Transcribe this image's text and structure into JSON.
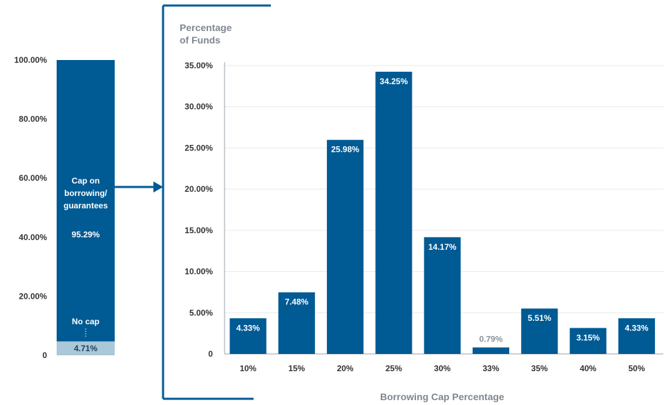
{
  "colors": {
    "bar": "#005a93",
    "no_cap_bar": "#a9c8d8",
    "bracket": "#005a93",
    "grid": "#e6e9ec",
    "axis_title": "#7f8791",
    "tick": "#333333"
  },
  "chart_data": [
    {
      "type": "bar",
      "stacked": true,
      "ylim": [
        0,
        100
      ],
      "y_ticks": [
        "0",
        "20.00%",
        "40.00%",
        "60.00%",
        "80.00%",
        "100.00%"
      ],
      "y_tick_values": [
        0,
        20,
        40,
        60,
        80,
        100
      ],
      "series": [
        {
          "name": "No cap",
          "value": 4.71,
          "label": "4.71%"
        },
        {
          "name": "Cap on borrowing/ guarantees",
          "label_lines": [
            "Cap on",
            "borrowing/",
            "guarantees"
          ],
          "value": 95.29,
          "label": "95.29%"
        }
      ]
    },
    {
      "type": "bar",
      "title": "",
      "ylabel_lines": [
        "Percentage",
        "of Funds"
      ],
      "xlabel": "Borrowing Cap Percentage",
      "ylim": [
        0,
        35
      ],
      "y_ticks": [
        "0",
        "5.00%",
        "10.00%",
        "15.00%",
        "20.00%",
        "25.00%",
        "30.00%",
        "35.00%"
      ],
      "y_tick_values": [
        0,
        5,
        10,
        15,
        20,
        25,
        30,
        35
      ],
      "grid": true,
      "categories": [
        "10%",
        "15%",
        "20%",
        "25%",
        "30%",
        "33%",
        "35%",
        "40%",
        "50%"
      ],
      "values": [
        4.33,
        7.48,
        25.98,
        34.25,
        14.17,
        0.79,
        5.51,
        3.15,
        4.33
      ],
      "labels": [
        "4.33%",
        "7.48%",
        "25.98%",
        "34.25%",
        "14.17%",
        "0.79%",
        "5.51%",
        "3.15%",
        "4.33%"
      ]
    }
  ]
}
